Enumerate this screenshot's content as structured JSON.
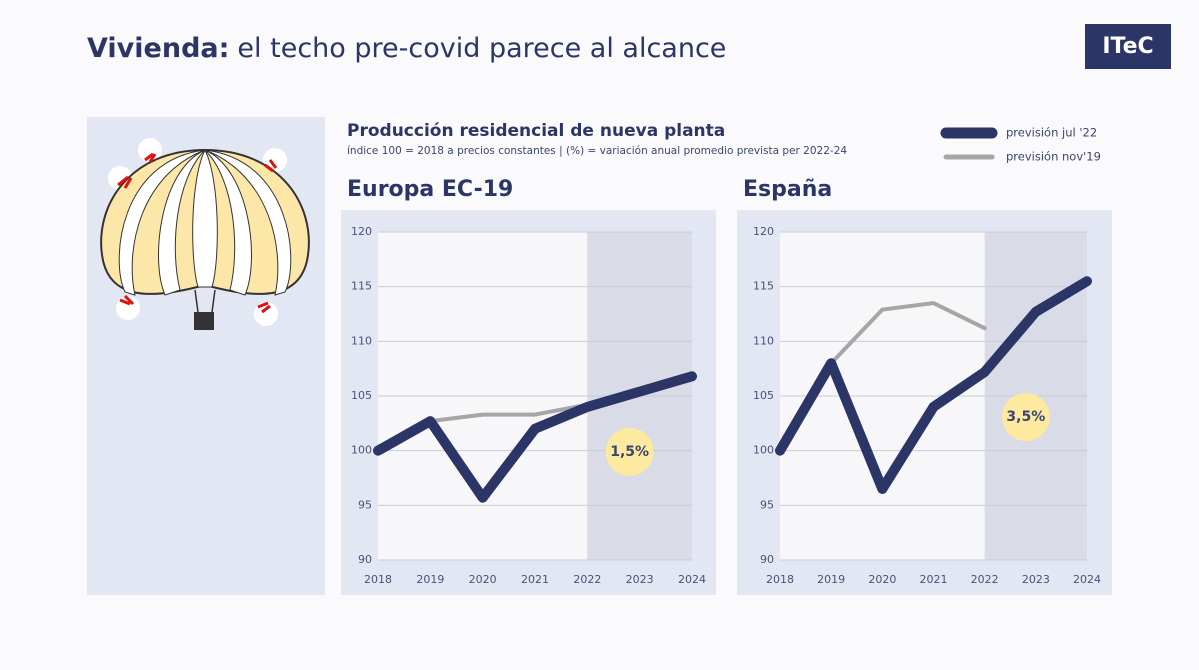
{
  "title_bold": "Vivienda:",
  "title_rest": "el techo pre-covid parece al alcance",
  "logo": "ITeC",
  "header": {
    "title": "Producción residencial de nueva planta",
    "subtitle": "índice 100 = 2018  a  precios constantes  |  (%) = variación anual promedio prevista per 2022-24"
  },
  "chart_data": [
    {
      "type": "line",
      "title": "Europa EC-19",
      "categories": [
        "2018",
        "2019",
        "2020",
        "2021",
        "2022",
        "2023",
        "2024"
      ],
      "series": [
        {
          "name": "previsión nov'19",
          "color": "#a6a6a6",
          "values": [
            100,
            102.7,
            103.3,
            103.3,
            104.2,
            null,
            null
          ]
        },
        {
          "name": "previsión jul '22",
          "color": "#2b3566",
          "values": [
            100,
            102.7,
            95.7,
            102,
            104,
            105.4,
            106.8
          ]
        }
      ],
      "ylim": [
        90,
        120
      ],
      "yticks": [
        90,
        95,
        100,
        105,
        110,
        115,
        120
      ],
      "grid": true,
      "shaded_range": [
        "2022",
        "2024"
      ],
      "annotation": "1,5%"
    },
    {
      "type": "line",
      "title": "España",
      "categories": [
        "2018",
        "2019",
        "2020",
        "2021",
        "2022",
        "2023",
        "2024"
      ],
      "series": [
        {
          "name": "previsión nov'19",
          "color": "#a6a6a6",
          "values": [
            100,
            108,
            112.9,
            113.5,
            111.2,
            null,
            null
          ]
        },
        {
          "name": "previsión jul '22",
          "color": "#2b3566",
          "values": [
            100,
            108,
            96.5,
            104,
            107.2,
            112.7,
            115.5
          ]
        }
      ],
      "ylim": [
        90,
        120
      ],
      "yticks": [
        90,
        95,
        100,
        105,
        110,
        115,
        120
      ],
      "grid": true,
      "shaded_range": [
        "2022",
        "2024"
      ],
      "annotation": "3,5%"
    }
  ]
}
